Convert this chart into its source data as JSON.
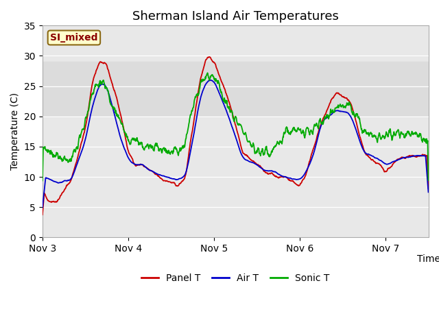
{
  "title": "Sherman Island Air Temperatures",
  "xlabel": "Time",
  "ylabel": "Temperature (C)",
  "ylim": [
    0,
    35
  ],
  "xlim": [
    0,
    108
  ],
  "xtick_positions": [
    0,
    24,
    48,
    72,
    96
  ],
  "xtick_labels": [
    "Nov 3",
    "Nov 4",
    "Nov 5",
    "Nov 6",
    "Nov 7"
  ],
  "ytick_positions": [
    0,
    5,
    10,
    15,
    20,
    25,
    30,
    35
  ],
  "legend_labels": [
    "Panel T",
    "Air T",
    "Sonic T"
  ],
  "legend_colors": [
    "#cc0000",
    "#0000cc",
    "#00aa00"
  ],
  "band_ymin": 20,
  "band_ymax": 29,
  "band_color": "#dcdcdc",
  "annotation_text": "SI_mixed",
  "bg_color": "#e8e8e8",
  "grid_color": "#ffffff",
  "title_fontsize": 13,
  "axis_fontsize": 10,
  "tick_fontsize": 10,
  "line_width": 1.3,
  "n_points": 1100,
  "time_max": 108
}
